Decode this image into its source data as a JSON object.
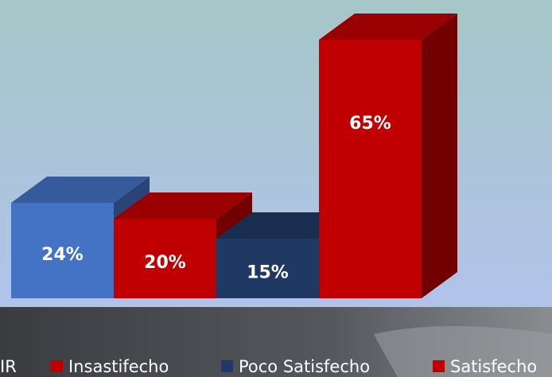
{
  "chart_data": {
    "type": "bar",
    "series": [
      {
        "name": "IR",
        "color": "#4472c4",
        "values": [
          24
        ],
        "value_labels": [
          "24%"
        ]
      },
      {
        "name": "Insastifecho",
        "color": "#c00000",
        "values": [
          20
        ],
        "value_labels": [
          "20%"
        ]
      },
      {
        "name": "Poco Satisfecho",
        "color": "#1f3864",
        "values": [
          15
        ],
        "value_labels": [
          "15%"
        ]
      },
      {
        "name": "Satisfecho",
        "color": "#c00000",
        "values": [
          65
        ],
        "value_labels": [
          "65%"
        ]
      }
    ]
  }
}
